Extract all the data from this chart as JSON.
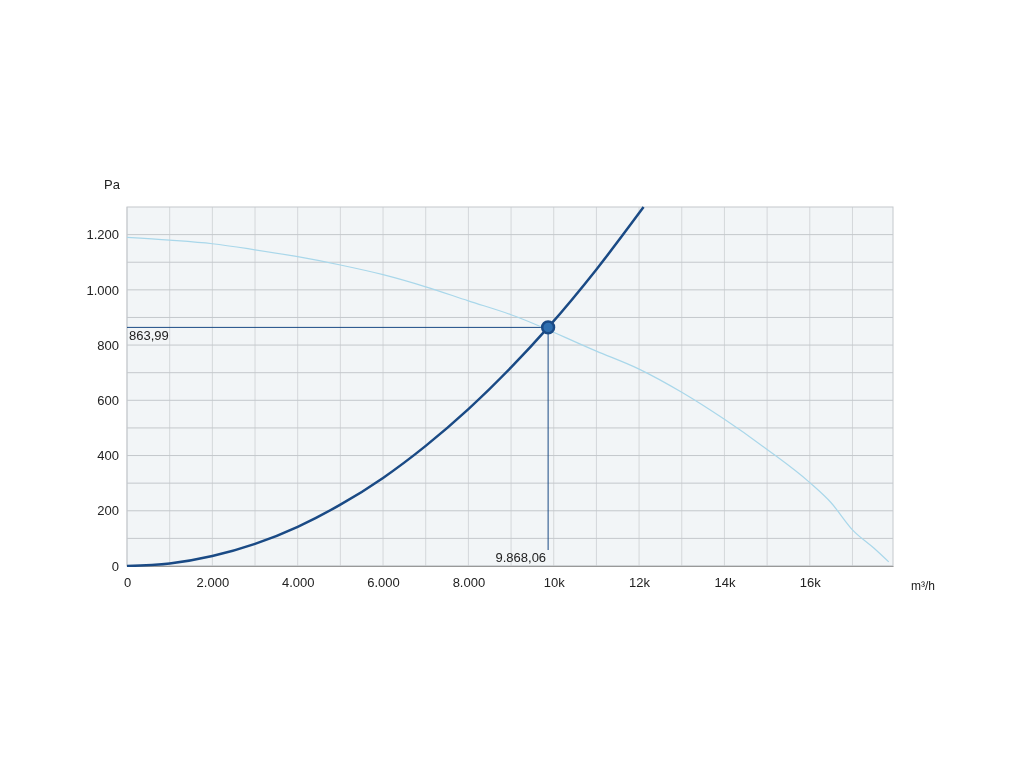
{
  "chart_data": {
    "type": "line",
    "xlabel": "m³/h",
    "ylabel": "Pa",
    "xlim": [
      0,
      17950
    ],
    "ylim": [
      0,
      1300
    ],
    "xticks": [
      0,
      {
        "value": 1000,
        "label": null
      },
      {
        "value": 2000,
        "label": "2.000"
      },
      {
        "value": 3000,
        "label": null
      },
      {
        "value": 4000,
        "label": "4.000"
      },
      {
        "value": 5000,
        "label": null
      },
      {
        "value": 6000,
        "label": "6.000"
      },
      {
        "value": 7000,
        "label": null
      },
      {
        "value": 8000,
        "label": "8.000"
      },
      {
        "value": 9000,
        "label": null
      },
      {
        "value": 10000,
        "label": "10k"
      },
      {
        "value": 11000,
        "label": null
      },
      {
        "value": 12000,
        "label": "12k"
      },
      {
        "value": 13000,
        "label": null
      },
      {
        "value": 14000,
        "label": "14k"
      },
      {
        "value": 15000,
        "label": null
      },
      {
        "value": 16000,
        "label": "16k"
      },
      {
        "value": 17000,
        "label": null
      }
    ],
    "yticks": [
      0,
      {
        "value": 100,
        "label": null
      },
      200,
      {
        "value": 300,
        "label": null
      },
      400,
      {
        "value": 500,
        "label": null
      },
      600,
      {
        "value": 700,
        "label": null
      },
      800,
      {
        "value": 900,
        "label": null
      },
      {
        "value": 1000,
        "label": "1.000"
      },
      {
        "value": 1100,
        "label": null
      },
      {
        "value": 1200,
        "label": "1.200"
      }
    ],
    "grid": true,
    "marker": "none",
    "line_style": "solid",
    "series": [
      {
        "color": "#a9d7ea",
        "x": [
          0,
          1000,
          2000,
          3000,
          4000,
          5000,
          6000,
          7000,
          8000,
          9000,
          9868.06,
          11000,
          12000,
          13000,
          14000,
          15000,
          16000,
          16500,
          17000,
          17500,
          17850
        ],
        "values": [
          1190,
          1180,
          1167,
          1145,
          1120,
          1090,
          1055,
          1011,
          960,
          910,
          null,
          778,
          713,
          629,
          531,
          422,
          302,
          229,
          131,
          65,
          15
        ]
      },
      {
        "color": "#1a4a85",
        "x": [
          0,
          1000,
          2000,
          3000,
          4000,
          5000,
          6000,
          7000,
          8000,
          9000,
          9868.06,
          11000,
          12000,
          12105
        ],
        "values": [
          0,
          9,
          36,
          80,
          142,
          222,
          319,
          435,
          568,
          719,
          864,
          1074,
          1278,
          1300
        ]
      },
      {
        "type": "scatter",
        "marker": "circle",
        "color": "#1a4a85",
        "x": [
          9868.06
        ],
        "values": [
          863.99
        ]
      }
    ],
    "ref_lines": [
      {
        "axis": "y",
        "value": 863.99,
        "label": "863,99",
        "color": "#1a4a85"
      },
      {
        "axis": "x",
        "value": 9868.06,
        "label": "9.868,06",
        "color": "#1a4a85"
      }
    ]
  }
}
